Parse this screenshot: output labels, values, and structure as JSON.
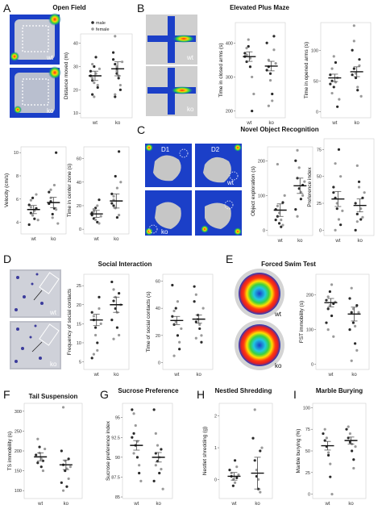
{
  "figure": {
    "panels": [
      {
        "letter": "A",
        "title": "Open Field"
      },
      {
        "letter": "B",
        "title": "Elevated Plus Maze"
      },
      {
        "letter": "C",
        "title": "Novel Object Recognition"
      },
      {
        "letter": "D",
        "title": "Social Interaction"
      },
      {
        "letter": "E",
        "title": "Forced Swim Test"
      },
      {
        "letter": "F",
        "title": "Tail Suspension"
      },
      {
        "letter": "G",
        "title": "Sucrose Preference"
      },
      {
        "letter": "H",
        "title": "Nestled Shredding"
      },
      {
        "letter": "I",
        "title": "Marble Burying"
      }
    ],
    "image_labels": {
      "wt": "wt",
      "ko": "ko",
      "d1": "D1",
      "d2": "D2"
    },
    "legend": {
      "male": "male",
      "female": "female"
    },
    "significance": "*",
    "colors": {
      "male": "#2b2b2b",
      "female": "#9a9a9a",
      "mean_bar": "#555555",
      "heat_low": "#1b3fc8",
      "heat_high": "#e02020",
      "arena_gray": "#c9c9c9"
    }
  },
  "chart_data": [
    {
      "id": "A_distance",
      "type": "scatter",
      "ylabel": "Distance moved (m)",
      "categories": [
        "wt",
        "ko"
      ],
      "yticks": [
        10,
        20,
        30,
        40
      ],
      "ylim": [
        8,
        44
      ],
      "means": [
        26,
        29
      ],
      "sem": [
        2,
        3
      ],
      "series": [
        {
          "name": "male",
          "values": [
            [
              28,
              24,
              30,
              34,
              21,
              26,
              18
            ],
            [
              33,
              31,
              27,
              25,
              20,
              36,
              17,
              29
            ]
          ]
        },
        {
          "name": "female",
          "values": [
            [
              31,
              23,
              27,
              22,
              29,
              25,
              17
            ],
            [
              43,
              30,
              26,
              22,
              32,
              18,
              28
            ]
          ]
        }
      ]
    },
    {
      "id": "B_closed",
      "type": "scatter",
      "ylabel": "Time in closed arms (s)",
      "categories": [
        "wt",
        "ko"
      ],
      "yticks": [
        200,
        300,
        400
      ],
      "ylim": [
        180,
        460
      ],
      "means": [
        360,
        332
      ],
      "sem": [
        14,
        14
      ],
      "series": [
        {
          "name": "male",
          "values": [
            [
              370,
              345,
              390,
              330,
              200,
              360
            ],
            [
              400,
              330,
              310,
              250,
              420,
              320
            ]
          ]
        },
        {
          "name": "female",
          "values": [
            [
              385,
              410,
              355,
              300,
              250,
              365
            ],
            [
              350,
              290,
              230,
              380,
              340,
              215
            ]
          ]
        }
      ]
    },
    {
      "id": "B_opened",
      "type": "scatter",
      "ylabel": "Time in opened arms (s)",
      "categories": [
        "wt",
        "ko"
      ],
      "yticks": [
        0,
        50,
        100
      ],
      "ylim": [
        -10,
        145
      ],
      "means": [
        55,
        65
      ],
      "sem": [
        6,
        8
      ],
      "series": [
        {
          "name": "male",
          "values": [
            [
              60,
              50,
              40,
              80,
              8,
              45
            ],
            [
              100,
              70,
              55,
              35,
              85,
              60
            ]
          ]
        },
        {
          "name": "female",
          "values": [
            [
              70,
              90,
              48,
              55,
              20,
              30
            ],
            [
              115,
              62,
              40,
              75,
              25,
              140
            ]
          ]
        }
      ]
    },
    {
      "id": "A_velocity",
      "type": "scatter",
      "ylabel": "Velocity (cm/s)",
      "categories": [
        "wt",
        "ko"
      ],
      "yticks": [
        4,
        6,
        8,
        10
      ],
      "ylim": [
        3,
        10.5
      ],
      "means": [
        5.1,
        5.7
      ],
      "sem": [
        0.35,
        0.45
      ],
      "series": [
        {
          "name": "male",
          "values": [
            [
              5.5,
              4.8,
              6.1,
              4.3,
              5.2,
              3.8
            ],
            [
              6.6,
              5.8,
              4.7,
              5.2,
              10.0,
              5.6
            ]
          ]
        },
        {
          "name": "female",
          "values": [
            [
              5.9,
              4.6,
              5.0,
              6.4,
              4.2,
              5.3
            ],
            [
              6.1,
              4.4,
              7.2,
              5.1,
              3.9,
              6.8
            ]
          ]
        }
      ]
    },
    {
      "id": "A_center",
      "type": "scatter",
      "ylabel": "Time in center zone (s)",
      "categories": [
        "wt",
        "ko"
      ],
      "yticks": [
        0,
        20,
        40,
        60
      ],
      "ylim": [
        -4,
        70
      ],
      "means": [
        13,
        24
      ],
      "sem": [
        3,
        6
      ],
      "series": [
        {
          "name": "male",
          "values": [
            [
              12,
              9,
              18,
              6,
              25,
              14
            ],
            [
              30,
              20,
              45,
              10,
              66,
              22
            ]
          ]
        },
        {
          "name": "female",
          "values": [
            [
              15,
              8,
              20,
              5,
              11,
              17
            ],
            [
              28,
              18,
              35,
              12,
              40,
              25
            ]
          ]
        }
      ]
    },
    {
      "id": "C_exploration",
      "type": "scatter",
      "ylabel": "Object exploration (s)",
      "categories": [
        "wt",
        "ko"
      ],
      "yticks": [
        0,
        100,
        200
      ],
      "ylim": [
        -15,
        240
      ],
      "means": [
        58,
        128
      ],
      "sem": [
        18,
        22
      ],
      "series": [
        {
          "name": "male",
          "values": [
            [
              60,
              40,
              20,
              10,
              80,
              30
            ],
            [
              200,
              150,
              120,
              90,
              130,
              60
            ]
          ]
        },
        {
          "name": "female",
          "values": [
            [
              190,
              50,
              30,
              15,
              100,
              70
            ],
            [
              230,
              180,
              110,
              100,
              140,
              40
            ]
          ]
        }
      ]
    },
    {
      "id": "C_preference",
      "type": "scatter",
      "ylabel": "Preference index",
      "categories": [
        "wt",
        "ko"
      ],
      "yticks": [
        0,
        25,
        50,
        75
      ],
      "ylim": [
        -5,
        85
      ],
      "means": [
        29,
        23
      ],
      "sem": [
        7,
        6
      ],
      "series": [
        {
          "name": "male",
          "values": [
            [
              40,
              30,
              20,
              75,
              5,
              35
            ],
            [
              25,
              15,
              45,
              10,
              30,
              0
            ]
          ]
        },
        {
          "name": "female",
          "values": [
            [
              62,
              25,
              10,
              50,
              18,
              0
            ],
            [
              60,
              40,
              20,
              12,
              35,
              8
            ]
          ]
        }
      ]
    },
    {
      "id": "D_frequency",
      "type": "scatter",
      "ylabel": "Frequency of social contacts",
      "categories": [
        "wt",
        "ko"
      ],
      "yticks": [
        5,
        10,
        15,
        20,
        25
      ],
      "ylim": [
        3,
        28
      ],
      "means": [
        16,
        20
      ],
      "sem": [
        1.5,
        2
      ],
      "series": [
        {
          "name": "male",
          "values": [
            [
              18,
              16,
              14,
              10,
              22,
              6
            ],
            [
              26,
              21,
              19,
              14,
              23,
              16
            ]
          ]
        },
        {
          "name": "female",
          "values": [
            [
              17,
              12,
              8,
              19,
              15,
              7
            ],
            [
              24,
              22,
              18,
              12,
              20,
              11
            ]
          ]
        }
      ]
    },
    {
      "id": "D_time",
      "type": "scatter",
      "ylabel": "Time of social contacts (s)",
      "categories": [
        "wt",
        "ko"
      ],
      "yticks": [
        0,
        20,
        40,
        60
      ],
      "ylim": [
        -5,
        65
      ],
      "means": [
        31,
        32
      ],
      "sem": [
        3,
        3
      ],
      "series": [
        {
          "name": "male",
          "values": [
            [
              34,
              28,
              40,
              20,
              10,
              57
            ],
            [
              45,
              30,
              35,
              25,
              15,
              56
            ]
          ]
        },
        {
          "name": "female",
          "values": [
            [
              38,
              30,
              45,
              15,
              25,
              5
            ],
            [
              50,
              32,
              28,
              20,
              40,
              18
            ]
          ]
        }
      ]
    },
    {
      "id": "E_fst",
      "type": "scatter",
      "ylabel": "FST immobility (s)",
      "categories": [
        "wt",
        "ko"
      ],
      "yticks": [
        0,
        100,
        200
      ],
      "ylim": [
        -15,
        260
      ],
      "means": [
        178,
        145
      ],
      "sem": [
        12,
        20
      ],
      "series": [
        {
          "name": "male",
          "values": [
            [
              185,
              160,
              210,
              140,
              175,
              120
            ],
            [
              190,
              150,
              120,
              60,
              170,
              100
            ]
          ]
        },
        {
          "name": "female",
          "values": [
            [
              195,
              170,
              230,
              80,
              180,
              100
            ],
            [
              220,
              160,
              110,
              40,
              150,
              10
            ]
          ]
        }
      ]
    },
    {
      "id": "F_ts",
      "type": "scatter",
      "ylabel": "TS immobility (s)",
      "categories": [
        "wt",
        "ko"
      ],
      "yticks": [
        100,
        150,
        200,
        250,
        300
      ],
      "ylim": [
        80,
        320
      ],
      "means": [
        185,
        165
      ],
      "sem": [
        10,
        12
      ],
      "series": [
        {
          "name": "male",
          "values": [
            [
              190,
              170,
              210,
              160,
              175
            ],
            [
              200,
              165,
              150,
              110,
              180,
              120
            ]
          ]
        },
        {
          "name": "female",
          "values": [
            [
              230,
              195,
              180,
              150,
              205
            ],
            [
              310,
              175,
              155,
              130,
              160,
              100
            ]
          ]
        }
      ]
    },
    {
      "id": "G_sucrose",
      "type": "scatter",
      "ylabel": "Sucrose preference index",
      "categories": [
        "wt",
        "ko"
      ],
      "yticks": [
        85,
        87.5,
        90,
        92.5,
        95
      ],
      "ylim": [
        84.8,
        96.8
      ],
      "means": [
        91.5,
        90
      ],
      "sem": [
        0.6,
        0.6
      ],
      "series": [
        {
          "name": "male",
          "values": [
            [
              96,
              93,
              91.5,
              90,
              88,
              92.5
            ],
            [
              96,
              90.5,
              89.5,
              88,
              91,
              87
            ]
          ]
        },
        {
          "name": "female",
          "values": [
            [
              95.5,
              94,
              92,
              89,
              87,
              90.5
            ],
            [
              93,
              91.5,
              90,
              88.5,
              86,
              89
            ]
          ]
        }
      ]
    },
    {
      "id": "H_nestlet",
      "type": "scatter",
      "ylabel": "Nestlet shredding (g)",
      "categories": [
        "wt",
        "ko"
      ],
      "yticks": [
        0,
        1,
        2
      ],
      "ylim": [
        -0.6,
        2.4
      ],
      "means": [
        0.1,
        0.2
      ],
      "sem": [
        0.12,
        0.5
      ],
      "series": [
        {
          "name": "male",
          "values": [
            [
              0.3,
              0.1,
              -0.2,
              0.6,
              0.05
            ],
            [
              1.3,
              0.6,
              0.1,
              -0.3,
              0.9
            ]
          ]
        },
        {
          "name": "female",
          "values": [
            [
              0.2,
              0.0,
              -0.1,
              0.4,
              0.15
            ],
            [
              2.2,
              0.3,
              0.0,
              -0.4,
              1.0
            ]
          ]
        }
      ]
    },
    {
      "id": "I_marble",
      "type": "scatter",
      "ylabel": "Marble burying (%)",
      "categories": [
        "wt",
        "ko"
      ],
      "yticks": [
        0,
        25,
        50,
        75,
        100
      ],
      "ylim": [
        -5,
        105
      ],
      "means": [
        56,
        62
      ],
      "sem": [
        5,
        4
      ],
      "series": [
        {
          "name": "male",
          "values": [
            [
              70,
              62,
              55,
              45,
              20
            ],
            [
              75,
              65,
              60,
              50,
              40
            ]
          ]
        },
        {
          "name": "female",
          "values": [
            [
              75,
              65,
              48,
              35,
              0
            ],
            [
              78,
              70,
              58,
              30,
              55
            ]
          ]
        }
      ]
    }
  ]
}
